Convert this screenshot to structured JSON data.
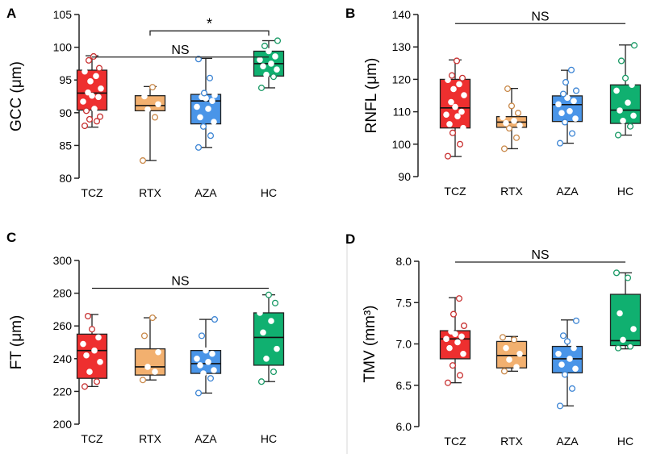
{
  "chart_data": [
    {
      "panel": "A",
      "type": "boxplot",
      "ylabel": "GCC (μm)",
      "ylim": [
        80,
        105
      ],
      "yticks": [
        80,
        85,
        90,
        95,
        100,
        105
      ],
      "categories": [
        "TCZ",
        "RTX",
        "AZA",
        "HC"
      ],
      "boxes": [
        {
          "min": 87.8,
          "q1": 90.4,
          "median": 93.0,
          "q3": 96.5,
          "max": 98.7
        },
        {
          "min": 82.7,
          "q1": 90.3,
          "median": 91.1,
          "q3": 92.6,
          "max": 94.0
        },
        {
          "min": 84.7,
          "q1": 88.3,
          "median": 91.8,
          "q3": 92.8,
          "max": 98.3
        },
        {
          "min": 93.8,
          "q1": 95.6,
          "median": 97.5,
          "q3": 99.4,
          "max": 101.0
        }
      ],
      "points": [
        [
          88.0,
          88.7,
          89.0,
          89.4,
          90.3,
          90.6,
          91.7,
          92.4,
          92.6,
          93.1,
          93.7,
          94.8,
          95.6,
          96.3,
          96.8,
          98.0,
          98.6
        ],
        [
          82.7,
          89.3,
          90.5,
          91.3,
          92.5,
          93.9
        ],
        [
          84.7,
          86.5,
          87.9,
          88.6,
          89.3,
          90.6,
          90.9,
          91.8,
          92.2,
          92.4,
          92.7,
          93.0,
          95.3,
          98.2
        ],
        [
          93.8,
          95.5,
          95.8,
          96.6,
          97.1,
          97.5,
          98.1,
          98.6,
          99.4,
          100.2,
          101.0
        ]
      ],
      "annotations": [
        {
          "text": "NS",
          "from": 0,
          "to": 3,
          "y": 98.5
        },
        {
          "text": "*",
          "from": 1,
          "to": 3,
          "y": 102.5
        }
      ]
    },
    {
      "panel": "B",
      "type": "boxplot",
      "ylabel": "RNFL (μm)",
      "ylim": [
        90,
        140
      ],
      "yticks": [
        90,
        100,
        110,
        120,
        130,
        140
      ],
      "categories": [
        "TCZ",
        "RTX",
        "AZA",
        "HC"
      ],
      "boxes": [
        {
          "min": 96.2,
          "q1": 105.0,
          "median": 111.2,
          "q3": 120.0,
          "max": 126.0
        },
        {
          "min": 98.6,
          "q1": 105.2,
          "median": 106.8,
          "q3": 108.5,
          "max": 117.2
        },
        {
          "min": 100.3,
          "q1": 107.0,
          "median": 112.2,
          "q3": 114.9,
          "max": 122.8
        },
        {
          "min": 102.8,
          "q1": 106.4,
          "median": 110.5,
          "q3": 118.3,
          "max": 130.6
        }
      ],
      "points": [
        [
          96.3,
          100.0,
          103.5,
          105.0,
          106.2,
          108.6,
          109.1,
          110.0,
          111.5,
          113.0,
          115.1,
          117.0,
          118.5,
          119.8,
          120.4,
          121.2,
          125.7
        ],
        [
          98.6,
          102.0,
          104.9,
          105.8,
          106.5,
          107.2,
          108.3,
          109.6,
          111.8,
          117.1
        ],
        [
          100.3,
          103.3,
          106.8,
          107.9,
          109.6,
          110.2,
          112.3,
          113.3,
          114.3,
          115.5,
          116.5,
          119.1,
          122.9
        ],
        [
          102.8,
          105.5,
          107.2,
          108.8,
          110.4,
          112.8,
          116.5,
          118.3,
          120.4,
          125.7,
          130.5
        ]
      ],
      "annotations": [
        {
          "text": "NS",
          "from": 0,
          "to": 3,
          "y": 137.2
        }
      ]
    },
    {
      "panel": "C",
      "type": "boxplot",
      "ylabel": "FT (μm)",
      "ylim": [
        200,
        300
      ],
      "yticks": [
        200,
        220,
        240,
        260,
        280,
        300
      ],
      "categories": [
        "TCZ",
        "RTX",
        "AZA",
        "HC"
      ],
      "boxes": [
        {
          "min": 223,
          "q1": 228,
          "median": 245,
          "q3": 255,
          "max": 267
        },
        {
          "min": 227,
          "q1": 230,
          "median": 235,
          "q3": 246,
          "max": 265
        },
        {
          "min": 219,
          "q1": 231,
          "median": 237,
          "q3": 245,
          "max": 264
        },
        {
          "min": 226,
          "q1": 236,
          "median": 253,
          "q3": 268,
          "max": 279
        }
      ],
      "points": [
        [
          223,
          226,
          232,
          238,
          242,
          245,
          249,
          253,
          258,
          266
        ],
        [
          227,
          232,
          235,
          244,
          254,
          265
        ],
        [
          219,
          228,
          231,
          233,
          236,
          238,
          240,
          243,
          245,
          254,
          264
        ],
        [
          226,
          232,
          240,
          246,
          256,
          263,
          268,
          274,
          279
        ]
      ],
      "annotations": [
        {
          "text": "NS",
          "from": 0,
          "to": 3,
          "y": 283
        }
      ]
    },
    {
      "panel": "D",
      "type": "boxplot",
      "ylabel": "TMV (mm³)",
      "ylim": [
        6.0,
        8.0
      ],
      "yticks": [
        "6.0",
        "6.5",
        "7.0",
        "7.5",
        "8.0"
      ],
      "categories": [
        "TCZ",
        "RTX",
        "AZA",
        "HC"
      ],
      "boxes": [
        {
          "min": 6.53,
          "q1": 6.82,
          "median": 7.06,
          "q3": 7.16,
          "max": 7.56
        },
        {
          "min": 6.67,
          "q1": 6.71,
          "median": 6.86,
          "q3": 7.03,
          "max": 7.09
        },
        {
          "min": 6.25,
          "q1": 6.65,
          "median": 6.82,
          "q3": 6.97,
          "max": 7.29
        },
        {
          "min": 6.94,
          "q1": 6.98,
          "median": 7.04,
          "q3": 7.6,
          "max": 7.86
        }
      ],
      "points": [
        [
          6.53,
          6.62,
          6.74,
          6.88,
          6.95,
          7.02,
          7.06,
          7.09,
          7.12,
          7.15,
          7.22,
          7.36,
          7.55
        ],
        [
          6.67,
          6.72,
          6.81,
          6.88,
          6.95,
          7.05,
          7.08
        ],
        [
          6.25,
          6.46,
          6.63,
          6.7,
          6.75,
          6.82,
          6.88,
          6.95,
          7.03,
          7.1,
          7.28
        ],
        [
          6.95,
          6.97,
          7.05,
          7.18,
          7.37,
          7.8,
          7.86
        ]
      ],
      "annotations": [
        {
          "text": "NS",
          "from": 0,
          "to": 3,
          "y": 7.99
        }
      ]
    }
  ],
  "colors": {
    "TCZ_fill": "#ee2f2f",
    "TCZ_edge": "#c83232",
    "RTX_fill": "#f2b06f",
    "RTX_edge": "#c9894a",
    "AZA_fill": "#4a95e8",
    "AZA_edge": "#3d85d4",
    "HC_fill": "#10b070",
    "HC_edge": "#1a9a66",
    "axis": "#222222",
    "divider": "#d7d7d7"
  }
}
